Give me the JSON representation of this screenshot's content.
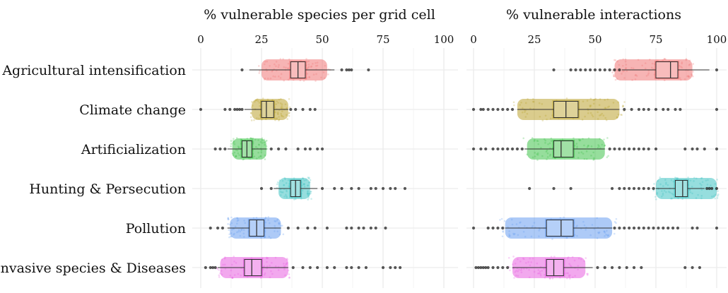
{
  "chart_data": [
    {
      "type": "boxplot",
      "title": "% vulnerable species per grid cell",
      "xlabel": "",
      "ylabel": "",
      "xlim": [
        0,
        100
      ],
      "xticks": [
        0,
        25,
        50,
        75,
        100
      ],
      "grid": true,
      "categories": [
        "Agricultural intensification",
        "Climate change",
        "Artificialization",
        "Hunting & Persecution",
        "Pollution",
        "Invasive species & Diseases"
      ],
      "colors": [
        "#f06a6a",
        "#b59a1c",
        "#2ebd3a",
        "#2ebdbd",
        "#5b96f0",
        "#e651de"
      ],
      "boxes": [
        {
          "category": "Agricultural intensification",
          "q1": 37,
          "median": 40,
          "q3": 43,
          "whisker_low": 20,
          "whisker_high": 55,
          "range_low": 25,
          "range_high": 52,
          "outliers": [
            17,
            58,
            60,
            61,
            62,
            69
          ]
        },
        {
          "category": "Climate change",
          "q1": 25,
          "median": 27,
          "q3": 30,
          "whisker_low": 18,
          "whisker_high": 36,
          "range_low": 21,
          "range_high": 36,
          "outliers": [
            0,
            10,
            12,
            14,
            15,
            16,
            17,
            37,
            39,
            42,
            45,
            47
          ]
        },
        {
          "category": "Artificialization",
          "q1": 17,
          "median": 19,
          "q3": 21,
          "whisker_low": 11,
          "whisker_high": 27,
          "range_low": 13,
          "range_high": 27,
          "outliers": [
            6,
            8,
            10,
            29,
            32,
            35,
            40,
            43,
            45,
            48,
            50
          ]
        },
        {
          "category": "Hunting & Persecution",
          "q1": 37,
          "median": 39,
          "q3": 41,
          "whisker_low": 30,
          "whisker_high": 48,
          "range_low": 32,
          "range_high": 45,
          "outliers": [
            25,
            29,
            50,
            55,
            58,
            62,
            65,
            70,
            72,
            75,
            78,
            80,
            84
          ]
        },
        {
          "category": "Pollution",
          "q1": 20,
          "median": 23,
          "q3": 26,
          "whisker_low": 11,
          "whisker_high": 33,
          "range_low": 12,
          "range_high": 33,
          "outliers": [
            4,
            7,
            9,
            36,
            40,
            44,
            47,
            52,
            60,
            62,
            65,
            67,
            70,
            72,
            76
          ]
        },
        {
          "category": "Invasive species & Diseases",
          "q1": 18,
          "median": 21,
          "q3": 25,
          "whisker_low": 7,
          "whisker_high": 36,
          "range_low": 8,
          "range_high": 36,
          "outliers": [
            2,
            4,
            5,
            6,
            38,
            42,
            45,
            48,
            52,
            55,
            60,
            62,
            65,
            68,
            75,
            78,
            80,
            82
          ]
        }
      ]
    },
    {
      "type": "boxplot",
      "title": "% vulnerable interactions",
      "xlabel": "",
      "ylabel": "",
      "xlim": [
        0,
        100
      ],
      "xticks": [
        0,
        25,
        50,
        75,
        100
      ],
      "grid": true,
      "categories": [
        "Agricultural intensification",
        "Climate change",
        "Artificialization",
        "Hunting & Persecution",
        "Pollution",
        "Invasive species & Diseases"
      ],
      "colors": [
        "#f06a6a",
        "#b59a1c",
        "#2ebd3a",
        "#2ebdbd",
        "#5b96f0",
        "#e651de"
      ],
      "boxes": [
        {
          "category": "Agricultural intensification",
          "q1": 75,
          "median": 81,
          "q3": 84,
          "whisker_low": 61,
          "whisker_high": 97,
          "range_low": 58,
          "range_high": 90,
          "outliers": [
            33,
            40,
            42,
            44,
            46,
            48,
            50,
            52,
            54,
            56,
            58,
            60,
            100
          ]
        },
        {
          "category": "Climate change",
          "q1": 33,
          "median": 38,
          "q3": 43,
          "whisker_low": 18,
          "whisker_high": 60,
          "range_low": 18,
          "range_high": 60,
          "outliers": [
            0,
            3,
            4,
            6,
            8,
            10,
            12,
            14,
            16,
            62,
            65,
            68,
            70,
            72,
            75,
            78,
            80,
            83,
            85,
            100
          ]
        },
        {
          "category": "Artificialization",
          "q1": 33,
          "median": 36,
          "q3": 41,
          "whisker_low": 21,
          "whisker_high": 54,
          "range_low": 22,
          "range_high": 54,
          "outliers": [
            0,
            3,
            5,
            8,
            10,
            12,
            14,
            16,
            18,
            20,
            56,
            58,
            60,
            62,
            64,
            66,
            68,
            70,
            72,
            75,
            87,
            90,
            92,
            95,
            100
          ]
        },
        {
          "category": "Hunting & Persecution",
          "q1": 83,
          "median": 86,
          "q3": 88,
          "whisker_low": 75,
          "whisker_high": 95,
          "range_low": 75,
          "range_high": 100,
          "outliers": [
            23,
            33,
            40,
            57,
            60,
            62,
            64,
            66,
            68,
            70,
            72,
            74,
            96,
            97,
            98,
            100
          ]
        },
        {
          "category": "Pollution",
          "q1": 30,
          "median": 36,
          "q3": 41,
          "whisker_low": 13,
          "whisker_high": 57,
          "range_low": 13,
          "range_high": 57,
          "outliers": [
            0,
            6,
            8,
            10,
            12,
            58,
            60,
            62,
            64,
            66,
            68,
            70,
            72,
            74,
            76,
            78,
            80,
            82,
            84,
            90,
            92,
            100
          ]
        },
        {
          "category": "Invasive species & Diseases",
          "q1": 30,
          "median": 33,
          "q3": 37,
          "whisker_low": 16,
          "whisker_high": 49,
          "range_low": 16,
          "range_high": 46,
          "outliers": [
            1,
            2,
            3,
            4,
            5,
            6,
            8,
            10,
            12,
            14,
            51,
            54,
            57,
            60,
            63,
            66,
            69,
            87,
            90,
            93
          ]
        }
      ]
    }
  ]
}
